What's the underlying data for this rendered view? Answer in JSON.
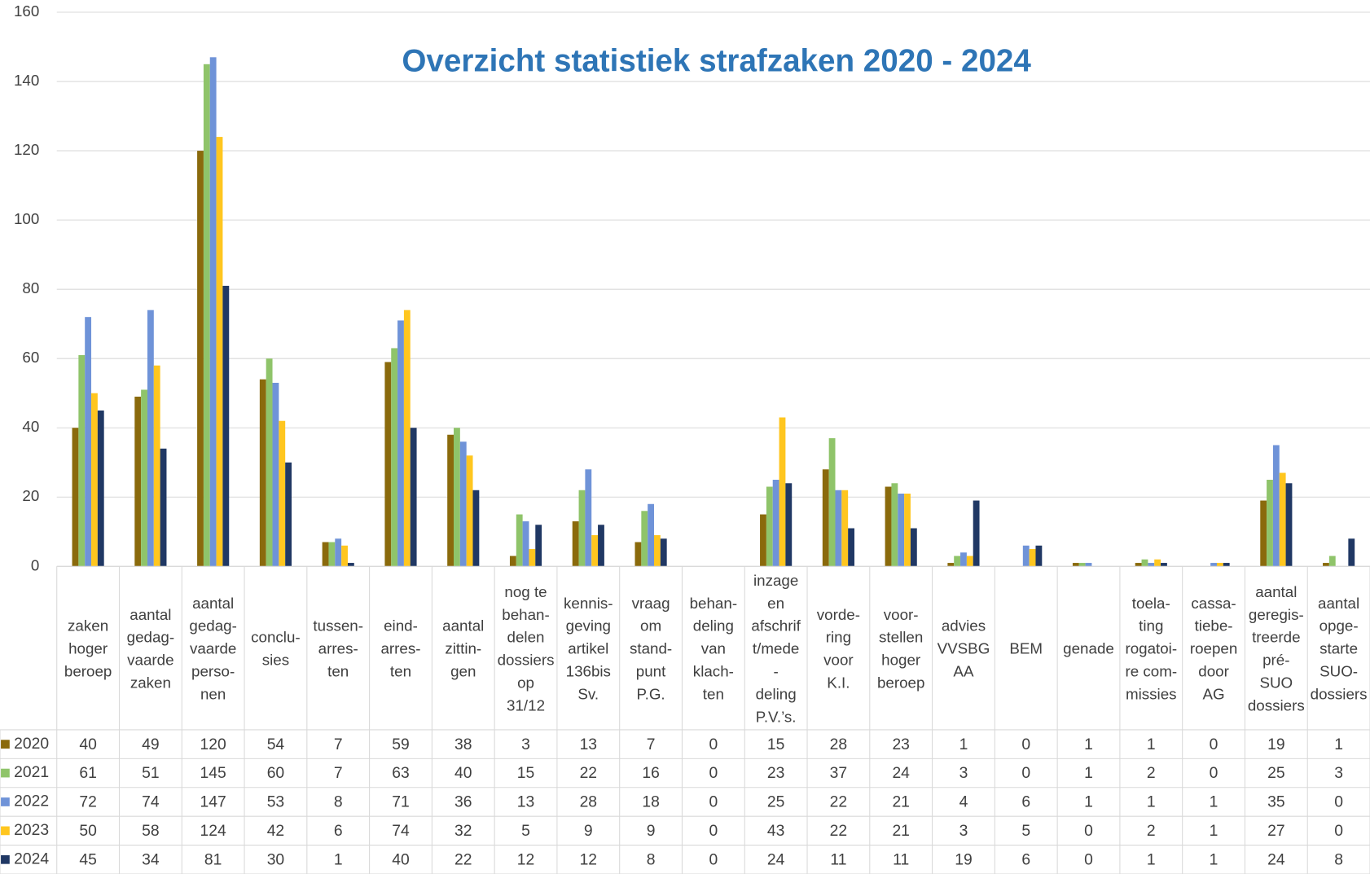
{
  "chart_data": {
    "type": "bar",
    "title": "Overzicht statistiek strafzaken 2020 - 2024",
    "categories": [
      "zaken\nhoger\nberoep",
      "aantal\ngedag-\nvaarde\nzaken",
      "aantal\ngedag-\nvaarde\nperso-\nnen",
      "conclu-\nsies",
      "tussen-\narres-\nten",
      "eind-\narres-\nten",
      "aantal\nzittin-\ngen",
      "nog te\nbehan-\ndelen\ndossiers\nop\n31/12",
      "kennis-\ngeving\nartikel\n136bis\nSv.",
      "vraag\nom\nstand-\npunt\nP.G.",
      "behan-\ndeling\nvan\nklach-\nten",
      "inzage\nen\nafschrif\nt/mede\n-\ndeling\nP.V.’s.",
      "vorde-\nring\nvoor\nK.I.",
      "voor-\nstellen\nhoger\nberoep",
      "advies\nVVSBG\nAA",
      "BEM",
      "genade",
      "toela-\nting\nrogatoi-\nre com-\nmissies",
      "cassa-\ntiebe-\nroepen\ndoor\nAG",
      "aantal\ngeregis-\ntreerde\npré-\nSUO\ndossiers",
      "aantal\nopge-\nstarte\nSUO-\ndossiers"
    ],
    "series": [
      {
        "name": "2020",
        "color": "#8a6a0c",
        "values": [
          40,
          49,
          120,
          54,
          7,
          59,
          38,
          3,
          13,
          7,
          0,
          15,
          28,
          23,
          1,
          0,
          1,
          1,
          0,
          19,
          1
        ]
      },
      {
        "name": "2021",
        "color": "#8fc46a",
        "values": [
          61,
          51,
          145,
          60,
          7,
          63,
          40,
          15,
          22,
          16,
          0,
          23,
          37,
          24,
          3,
          0,
          1,
          2,
          0,
          25,
          3
        ]
      },
      {
        "name": "2022",
        "color": "#6f93d8",
        "values": [
          72,
          74,
          147,
          53,
          8,
          71,
          36,
          13,
          28,
          18,
          0,
          25,
          22,
          21,
          4,
          6,
          1,
          1,
          1,
          35,
          0
        ]
      },
      {
        "name": "2023",
        "color": "#ffc61f",
        "values": [
          50,
          58,
          124,
          42,
          6,
          74,
          32,
          5,
          9,
          9,
          0,
          43,
          22,
          21,
          3,
          5,
          0,
          2,
          1,
          27,
          0
        ]
      },
      {
        "name": "2024",
        "color": "#203864",
        "values": [
          45,
          34,
          81,
          30,
          1,
          40,
          22,
          12,
          12,
          8,
          0,
          24,
          11,
          11,
          19,
          6,
          0,
          1,
          1,
          24,
          8
        ]
      }
    ],
    "ylim": [
      0,
      160
    ],
    "yticks": [
      0,
      20,
      40,
      60,
      80,
      100,
      120,
      140,
      160
    ],
    "grid": true
  }
}
